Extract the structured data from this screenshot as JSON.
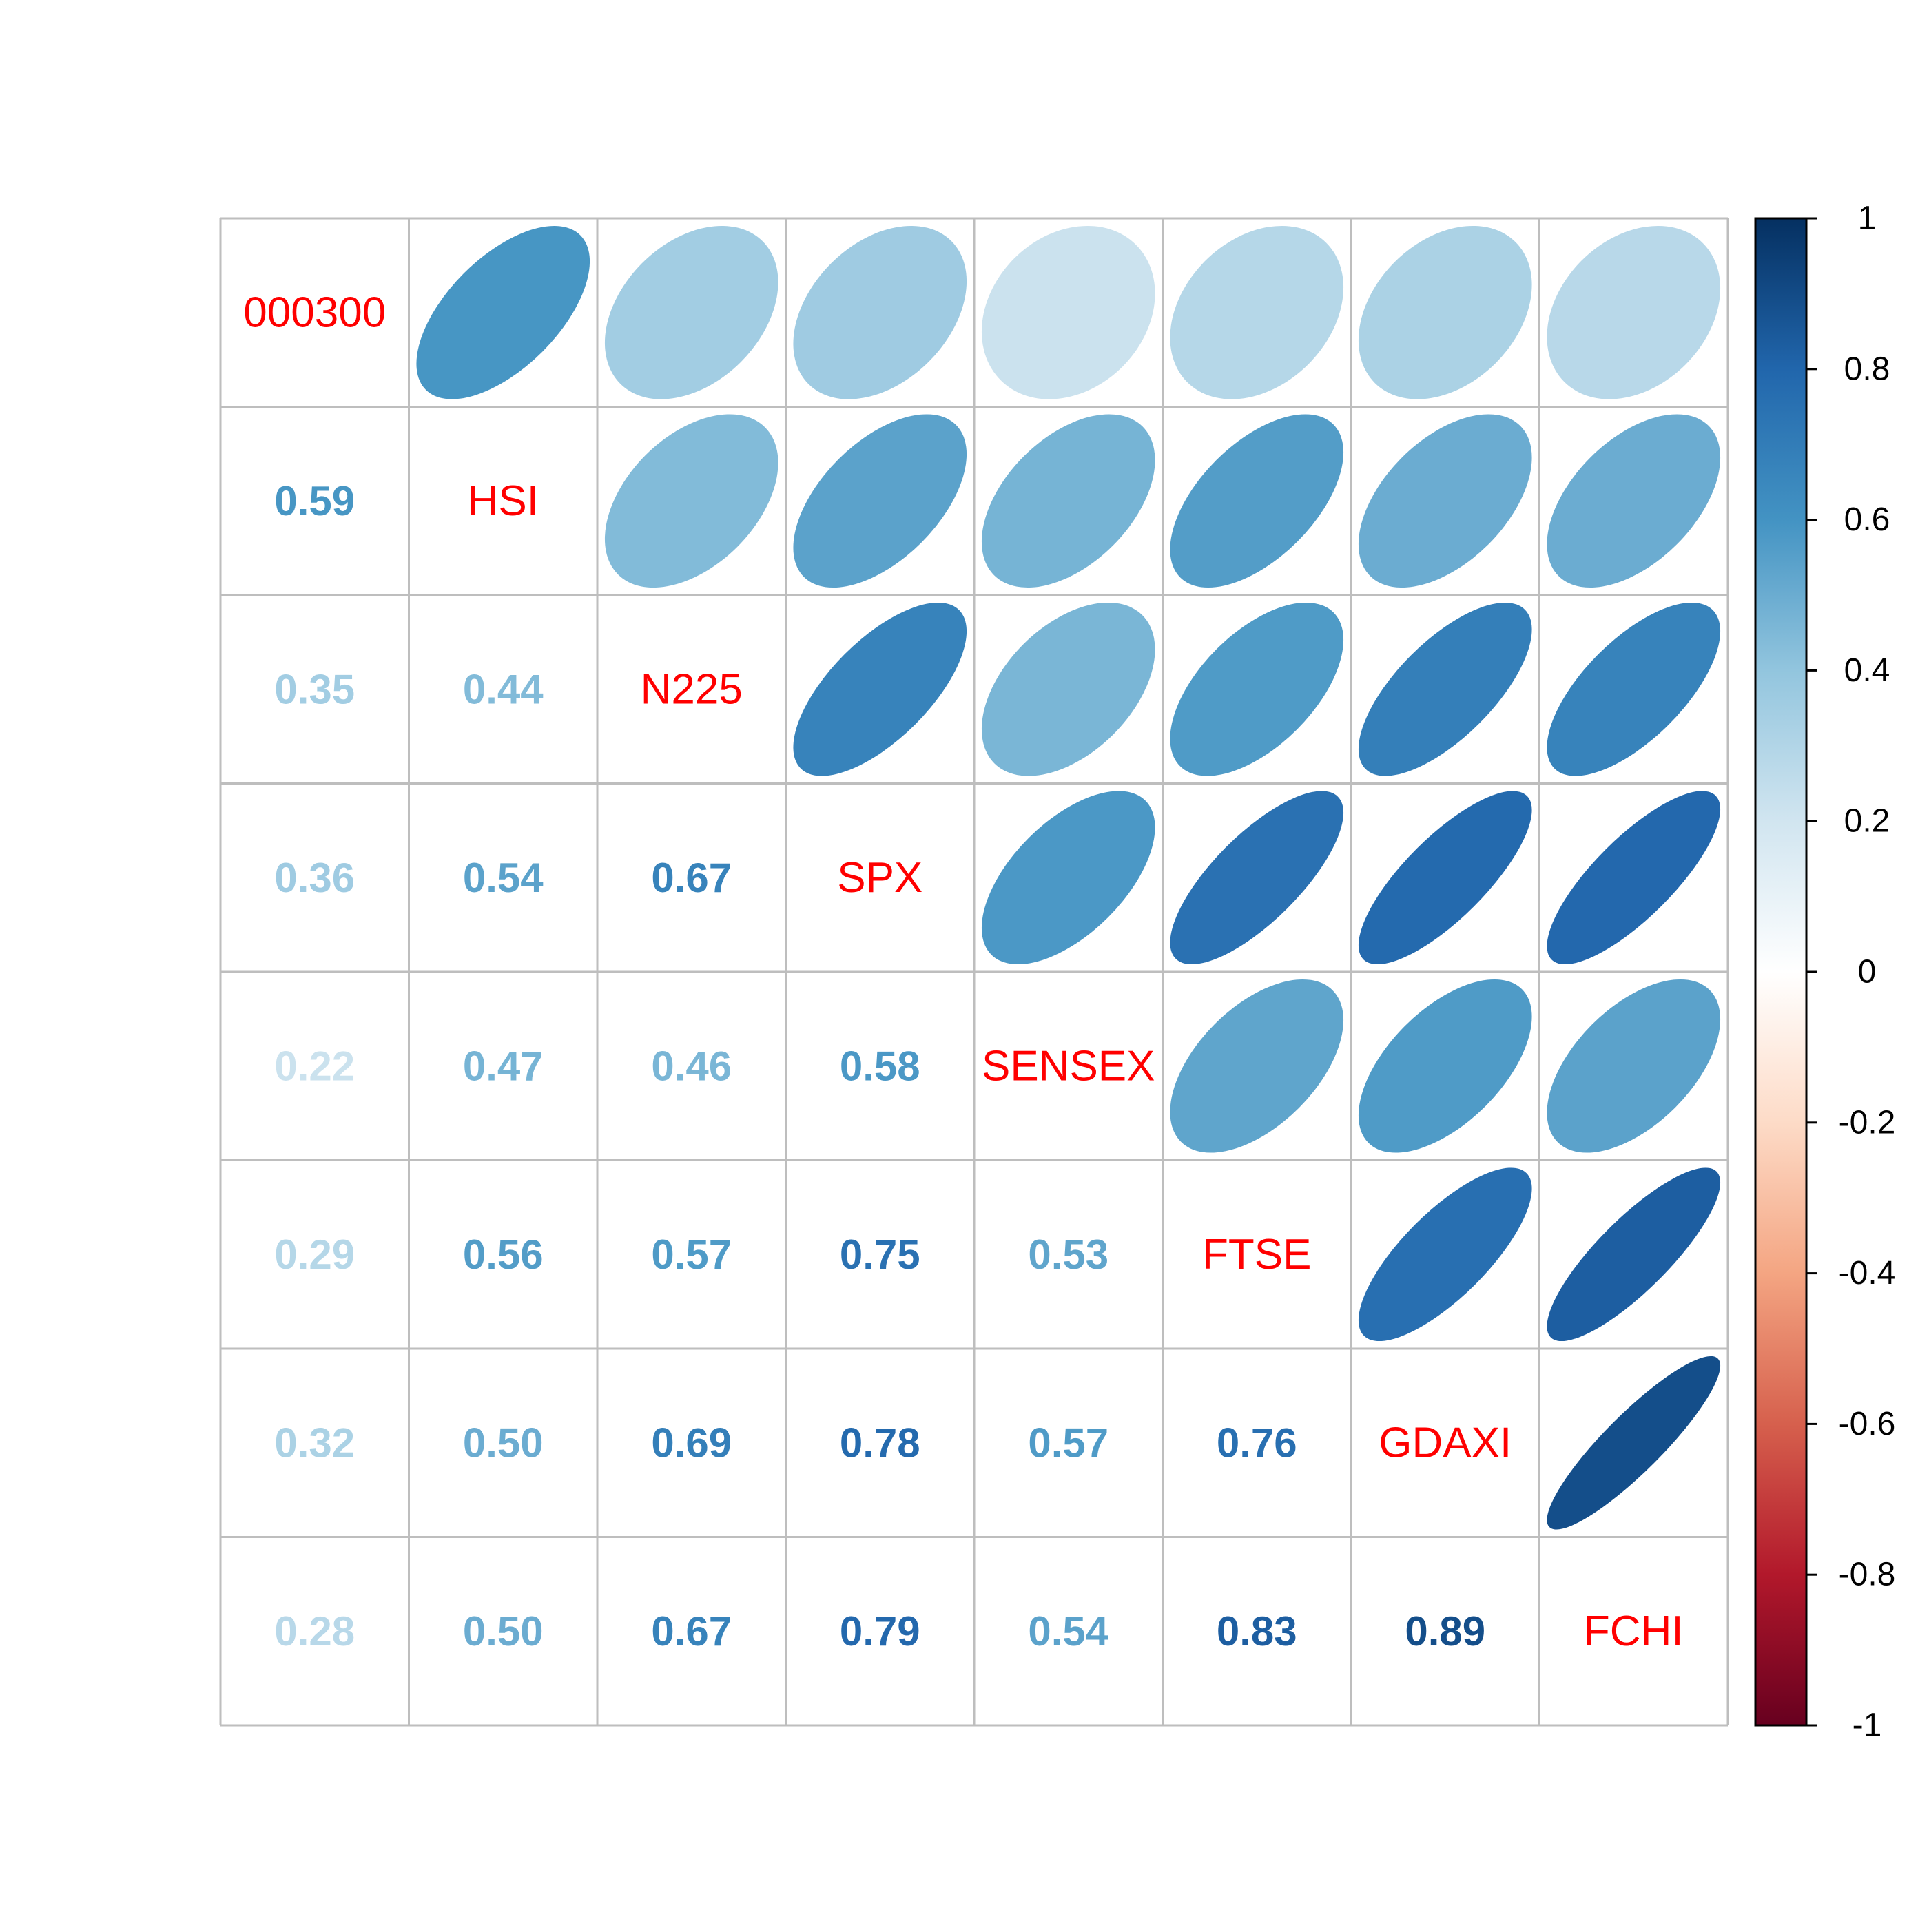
{
  "chart_data": {
    "type": "heatmap",
    "variables": [
      "000300",
      "HSI",
      "N225",
      "SPX",
      "SENSEX",
      "FTSE",
      "GDAXI",
      "FCHI"
    ],
    "matrix": [
      [
        1.0,
        0.59,
        0.35,
        0.36,
        0.22,
        0.29,
        0.32,
        0.28
      ],
      [
        0.59,
        1.0,
        0.44,
        0.54,
        0.47,
        0.56,
        0.5,
        0.5
      ],
      [
        0.35,
        0.44,
        1.0,
        0.67,
        0.46,
        0.57,
        0.69,
        0.67
      ],
      [
        0.36,
        0.54,
        0.67,
        1.0,
        0.58,
        0.75,
        0.78,
        0.79
      ],
      [
        0.22,
        0.47,
        0.46,
        0.58,
        1.0,
        0.53,
        0.57,
        0.54
      ],
      [
        0.29,
        0.56,
        0.57,
        0.75,
        0.53,
        1.0,
        0.76,
        0.83
      ],
      [
        0.32,
        0.5,
        0.69,
        0.78,
        0.57,
        0.76,
        1.0,
        0.89
      ],
      [
        0.28,
        0.5,
        0.67,
        0.79,
        0.54,
        0.83,
        0.89,
        1.0
      ]
    ],
    "upper": "ellipse",
    "lower": "number",
    "diagonal": "variable-name",
    "colorbar": {
      "range": [
        -1,
        1
      ],
      "ticks": [
        "1",
        "0.8",
        "0.6",
        "0.4",
        "0.2",
        "0",
        "-0.2",
        "-0.4",
        "-0.6",
        "-0.8",
        "-1"
      ],
      "placement": "right"
    },
    "colors": {
      "label": "#ff0000",
      "grid": "#bebebe",
      "palette": [
        "#67001F",
        "#B2182B",
        "#D6604D",
        "#F4A582",
        "#FDDBC7",
        "#FFFFFF",
        "#D1E5F0",
        "#92C5DE",
        "#4393C3",
        "#2166AC",
        "#053061"
      ]
    }
  }
}
